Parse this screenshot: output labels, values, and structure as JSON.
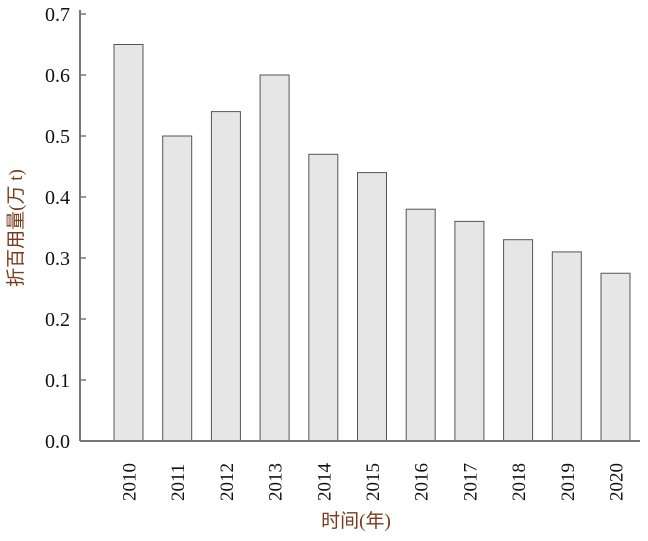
{
  "chart_data": {
    "type": "bar",
    "title": "",
    "xlabel": "时间(年)",
    "ylabel": "折百用量(万 t)",
    "categories": [
      "2010",
      "2011",
      "2012",
      "2013",
      "2014",
      "2015",
      "2016",
      "2017",
      "2018",
      "2019",
      "2020"
    ],
    "values": [
      0.65,
      0.5,
      0.54,
      0.6,
      0.47,
      0.44,
      0.38,
      0.36,
      0.33,
      0.31,
      0.275
    ],
    "ylim": [
      0,
      0.7
    ],
    "yticks": [
      "0.0",
      "0.1",
      "0.2",
      "0.3",
      "0.4",
      "0.5",
      "0.6",
      "0.7"
    ],
    "grid": false,
    "colors": {
      "bar_fill": "#e6e6e6",
      "bar_stroke": "#555555",
      "axis": "#777777",
      "ylabel": "#7a3a1a",
      "tick_text": "#111111"
    }
  }
}
